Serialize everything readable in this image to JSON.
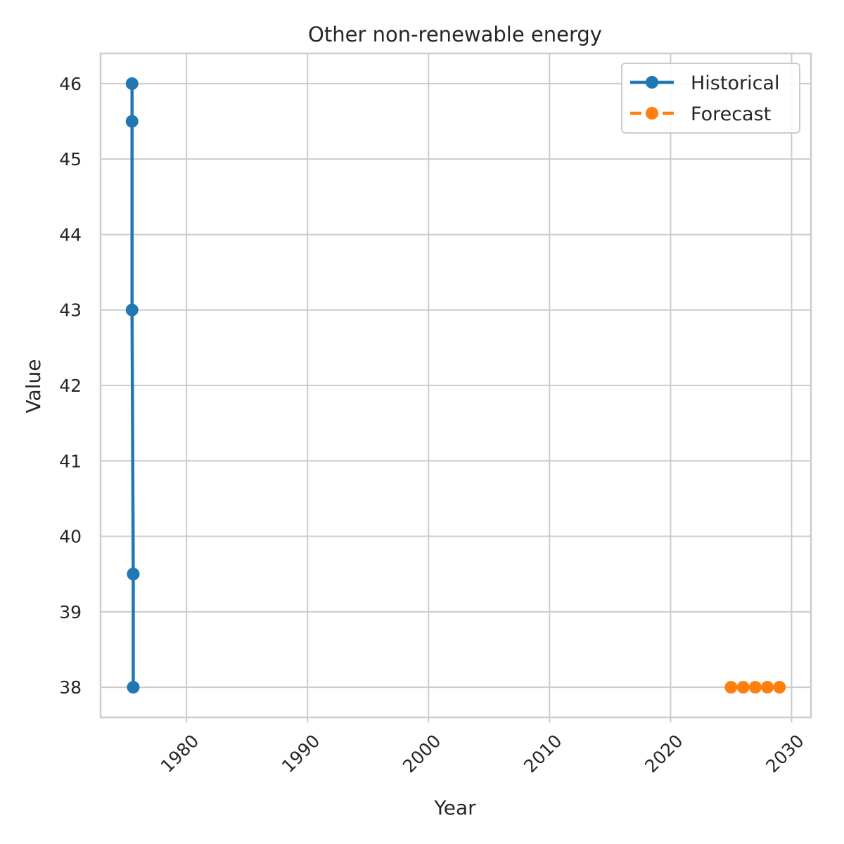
{
  "chart_data": {
    "type": "line",
    "title": "Other non-renewable energy",
    "xlabel": "Year",
    "ylabel": "Value",
    "xlim": [
      1972.9,
      2031.6
    ],
    "ylim": [
      37.6,
      46.4
    ],
    "xticks": [
      1980,
      1990,
      2000,
      2010,
      2020,
      2030
    ],
    "yticks": [
      38,
      39,
      40,
      41,
      42,
      43,
      44,
      45,
      46
    ],
    "grid": true,
    "legend_position": "top-right",
    "series": [
      {
        "name": "Historical",
        "color": "#1f77b4",
        "line_style": "solid",
        "marker": "circle",
        "x": [
          1975.5,
          1975.5,
          1975.5,
          1975.6,
          1975.6,
          1975.6
        ],
        "y": [
          46.0,
          45.5,
          43.0,
          39.5,
          39.5,
          38.0
        ]
      },
      {
        "name": "Forecast",
        "color": "#ff7f0e",
        "line_style": "dashed",
        "marker": "circle",
        "x": [
          2025,
          2026,
          2027,
          2028,
          2029
        ],
        "y": [
          38.0,
          38.0,
          38.0,
          38.0,
          38.0
        ]
      }
    ]
  }
}
